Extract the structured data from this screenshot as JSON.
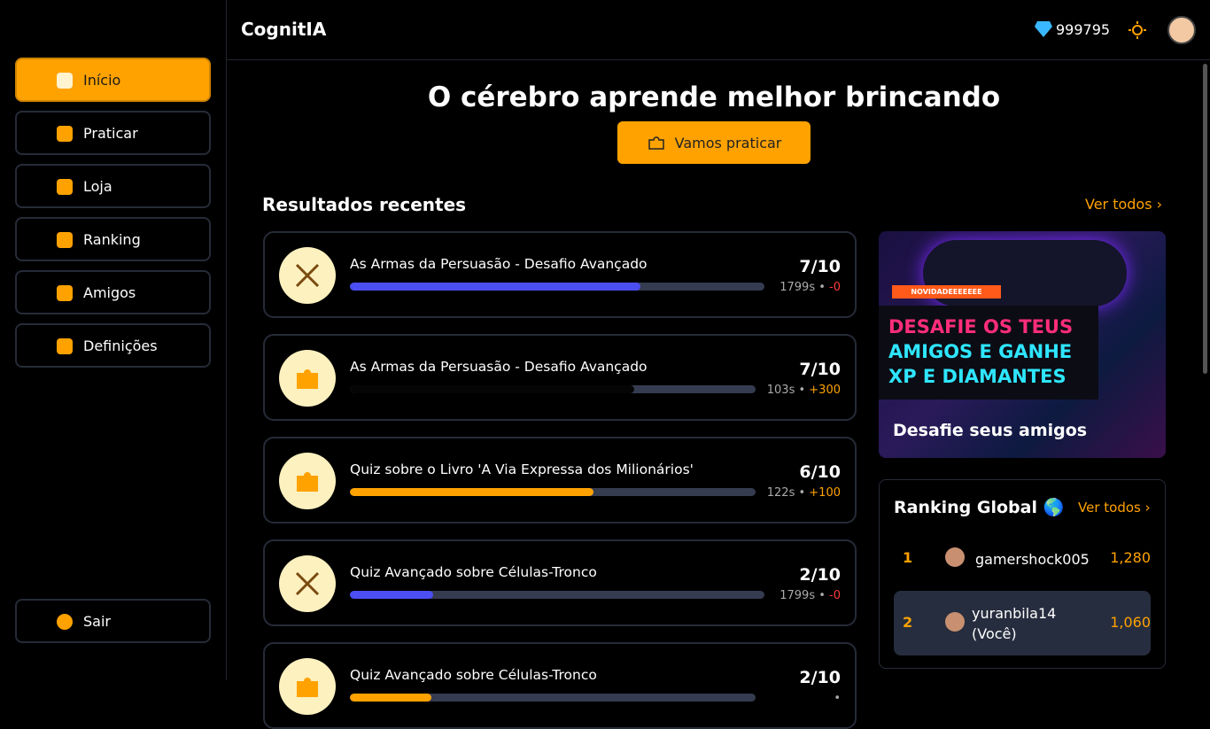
{
  "header": {
    "brand": "CognitIA",
    "diamonds": "999795"
  },
  "sidebar": {
    "items": [
      {
        "label": "Início",
        "active": true
      },
      {
        "label": "Praticar",
        "active": false
      },
      {
        "label": "Loja",
        "active": false
      },
      {
        "label": "Ranking",
        "active": false
      },
      {
        "label": "Amigos",
        "active": false
      },
      {
        "label": "Definições",
        "active": false
      }
    ],
    "logout": "Sair"
  },
  "hero": {
    "title": "O cérebro aprende melhor brincando",
    "button": "Vamos praticar"
  },
  "results": {
    "title": "Resultados recentes",
    "see_all": "Ver todos",
    "items": [
      {
        "title": "As Armas da Persuasão - Desafio Avançado",
        "score": "7/10",
        "time": "1799s",
        "reward": "-0",
        "reward_kind": "diamond",
        "icon": "swords",
        "progress": 70,
        "bar_color": "#4b4ef0"
      },
      {
        "title": "As Armas da Persuasão - Desafio Avançado",
        "score": "7/10",
        "time": "103s",
        "reward": "+300",
        "reward_kind": "xp",
        "icon": "puzzle",
        "progress": 70,
        "bar_color": "#050505"
      },
      {
        "title": "Quiz sobre o Livro 'A Via Expressa dos Milionários'",
        "score": "6/10",
        "time": "122s",
        "reward": "+100",
        "reward_kind": "xp",
        "icon": "puzzle",
        "progress": 60,
        "bar_color": "#ffa200"
      },
      {
        "title": "Quiz Avançado sobre Células-Tronco",
        "score": "2/10",
        "time": "1799s",
        "reward": "-0",
        "reward_kind": "diamond",
        "icon": "swords",
        "progress": 20,
        "bar_color": "#4b4ef0"
      },
      {
        "title": "Quiz Avançado sobre Células-Tronco",
        "score": "2/10",
        "time": "",
        "reward": "",
        "reward_kind": "xp",
        "icon": "puzzle",
        "progress": 20,
        "bar_color": "#ffa200"
      }
    ]
  },
  "banner": {
    "tag": "NOVIDADEEEEEEE",
    "lines": [
      "DESAFIE OS TEUS",
      "AMIGOS E GANHE",
      "XP E DIAMANTES"
    ],
    "caption": "Desafie seus amigos"
  },
  "ranking": {
    "title": "Ranking Global 🌎",
    "see_all": "Ver todos",
    "rows": [
      {
        "rank": "1",
        "name": "gamershock005",
        "points": "1,280",
        "me": false
      },
      {
        "rank": "2",
        "name": "yuranbila14 (Você)",
        "points": "1,060",
        "me": true
      }
    ]
  }
}
